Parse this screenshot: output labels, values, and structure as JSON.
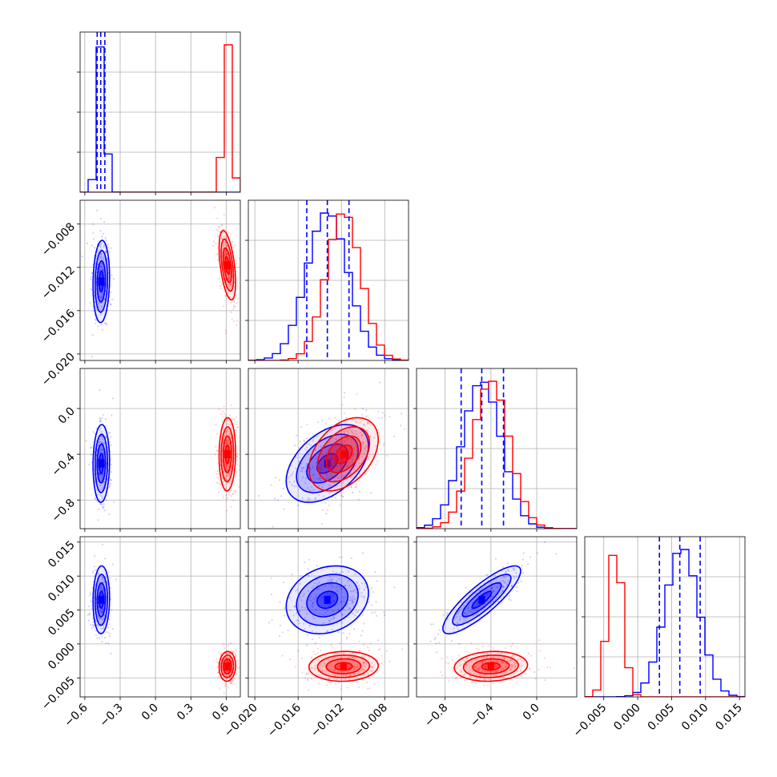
{
  "colors": {
    "series_a": "#0000ff",
    "series_b": "#ff0000",
    "grid": "#b0b0b0"
  },
  "chart_data": {
    "type": "corner",
    "title": "",
    "n_params": 4,
    "param_labels": [
      "",
      "",
      "",
      ""
    ],
    "ranges": [
      [
        -0.64,
        0.72
      ],
      [
        -0.0206,
        -0.0058
      ],
      [
        -1.05,
        0.35
      ],
      [
        -0.0078,
        0.0158
      ]
    ],
    "ticks": [
      [
        "−0.6",
        "−0.3",
        "0.0",
        "0.3",
        "0.6"
      ],
      [
        "−0.020",
        "−0.016",
        "−0.012",
        "−0.008"
      ],
      [
        "−0.8",
        "−0.4",
        "0.0"
      ],
      [
        "−0.005",
        "0.000",
        "0.005",
        "0.010",
        "0.015"
      ]
    ],
    "tick_values": [
      [
        -0.6,
        -0.3,
        0.0,
        0.3,
        0.6
      ],
      [
        -0.02,
        -0.016,
        -0.012,
        -0.008
      ],
      [
        -0.8,
        -0.4,
        0.0
      ],
      [
        -0.005,
        0.0,
        0.005,
        0.01,
        0.015
      ]
    ],
    "grid": true,
    "series": [
      {
        "color": "#0000ff",
        "mean": [
          -0.46,
          -0.0133,
          -0.48,
          0.0065
        ],
        "std": [
          0.035,
          0.0019,
          0.17,
          0.0025
        ],
        "corr": [
          [
            1,
            0.1,
            0.05,
            0.05
          ],
          [
            0.1,
            1,
            0.45,
            0.2
          ],
          [
            0.05,
            0.45,
            1,
            0.85
          ],
          [
            0.05,
            0.2,
            0.85,
            1
          ]
        ],
        "quantiles": {
          "p0": [
            -0.495,
            -0.0152,
            -0.66,
            0.0032
          ],
          "p1": [
            -0.465,
            -0.0133,
            -0.48,
            0.0062
          ],
          "p2": [
            -0.43,
            -0.0113,
            -0.29,
            0.0092
          ]
        }
      },
      {
        "color": "#ff0000",
        "mean": [
          0.61,
          -0.0118,
          -0.4,
          -0.0033
        ],
        "std": [
          0.035,
          0.0016,
          0.16,
          0.0011
        ],
        "corr": [
          [
            1,
            -0.5,
            0.05,
            0.05
          ],
          [
            -0.5,
            1,
            0.4,
            0.05
          ],
          [
            0.05,
            0.4,
            1,
            0.1
          ],
          [
            0.05,
            0.05,
            0.1,
            1
          ]
        ],
        "quantiles": null
      }
    ]
  }
}
